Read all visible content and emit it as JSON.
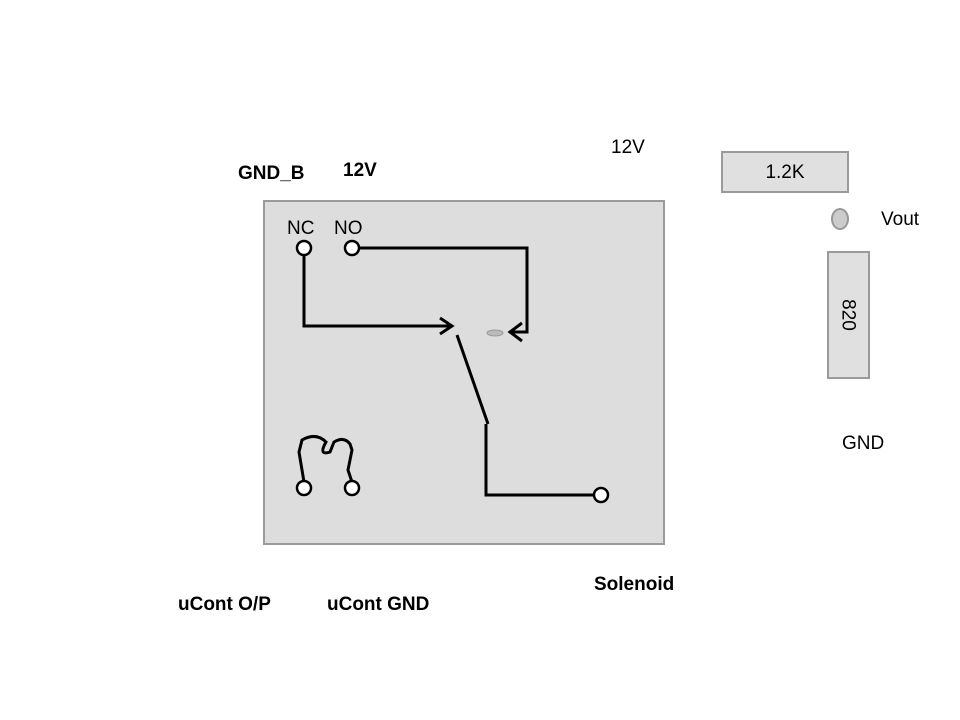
{
  "labels": {
    "gnd_b": "GND_B",
    "relay_12v": "12V",
    "divider_12v": "12V",
    "nc": "NC",
    "no": "NO",
    "ucont_op": "uCont O/P",
    "ucont_gnd": "uCont GND",
    "solenoid": "Solenoid",
    "vout": "Vout",
    "gnd": "GND"
  },
  "resistors": {
    "top": "1.2K",
    "bottom": "820"
  },
  "colors": {
    "relay_fill": "#dddddd",
    "relay_border": "#9a9a9a",
    "wire": "#000000",
    "resistor_fill": "#e0e0e0",
    "vout_node_fill": "#cccccc"
  }
}
